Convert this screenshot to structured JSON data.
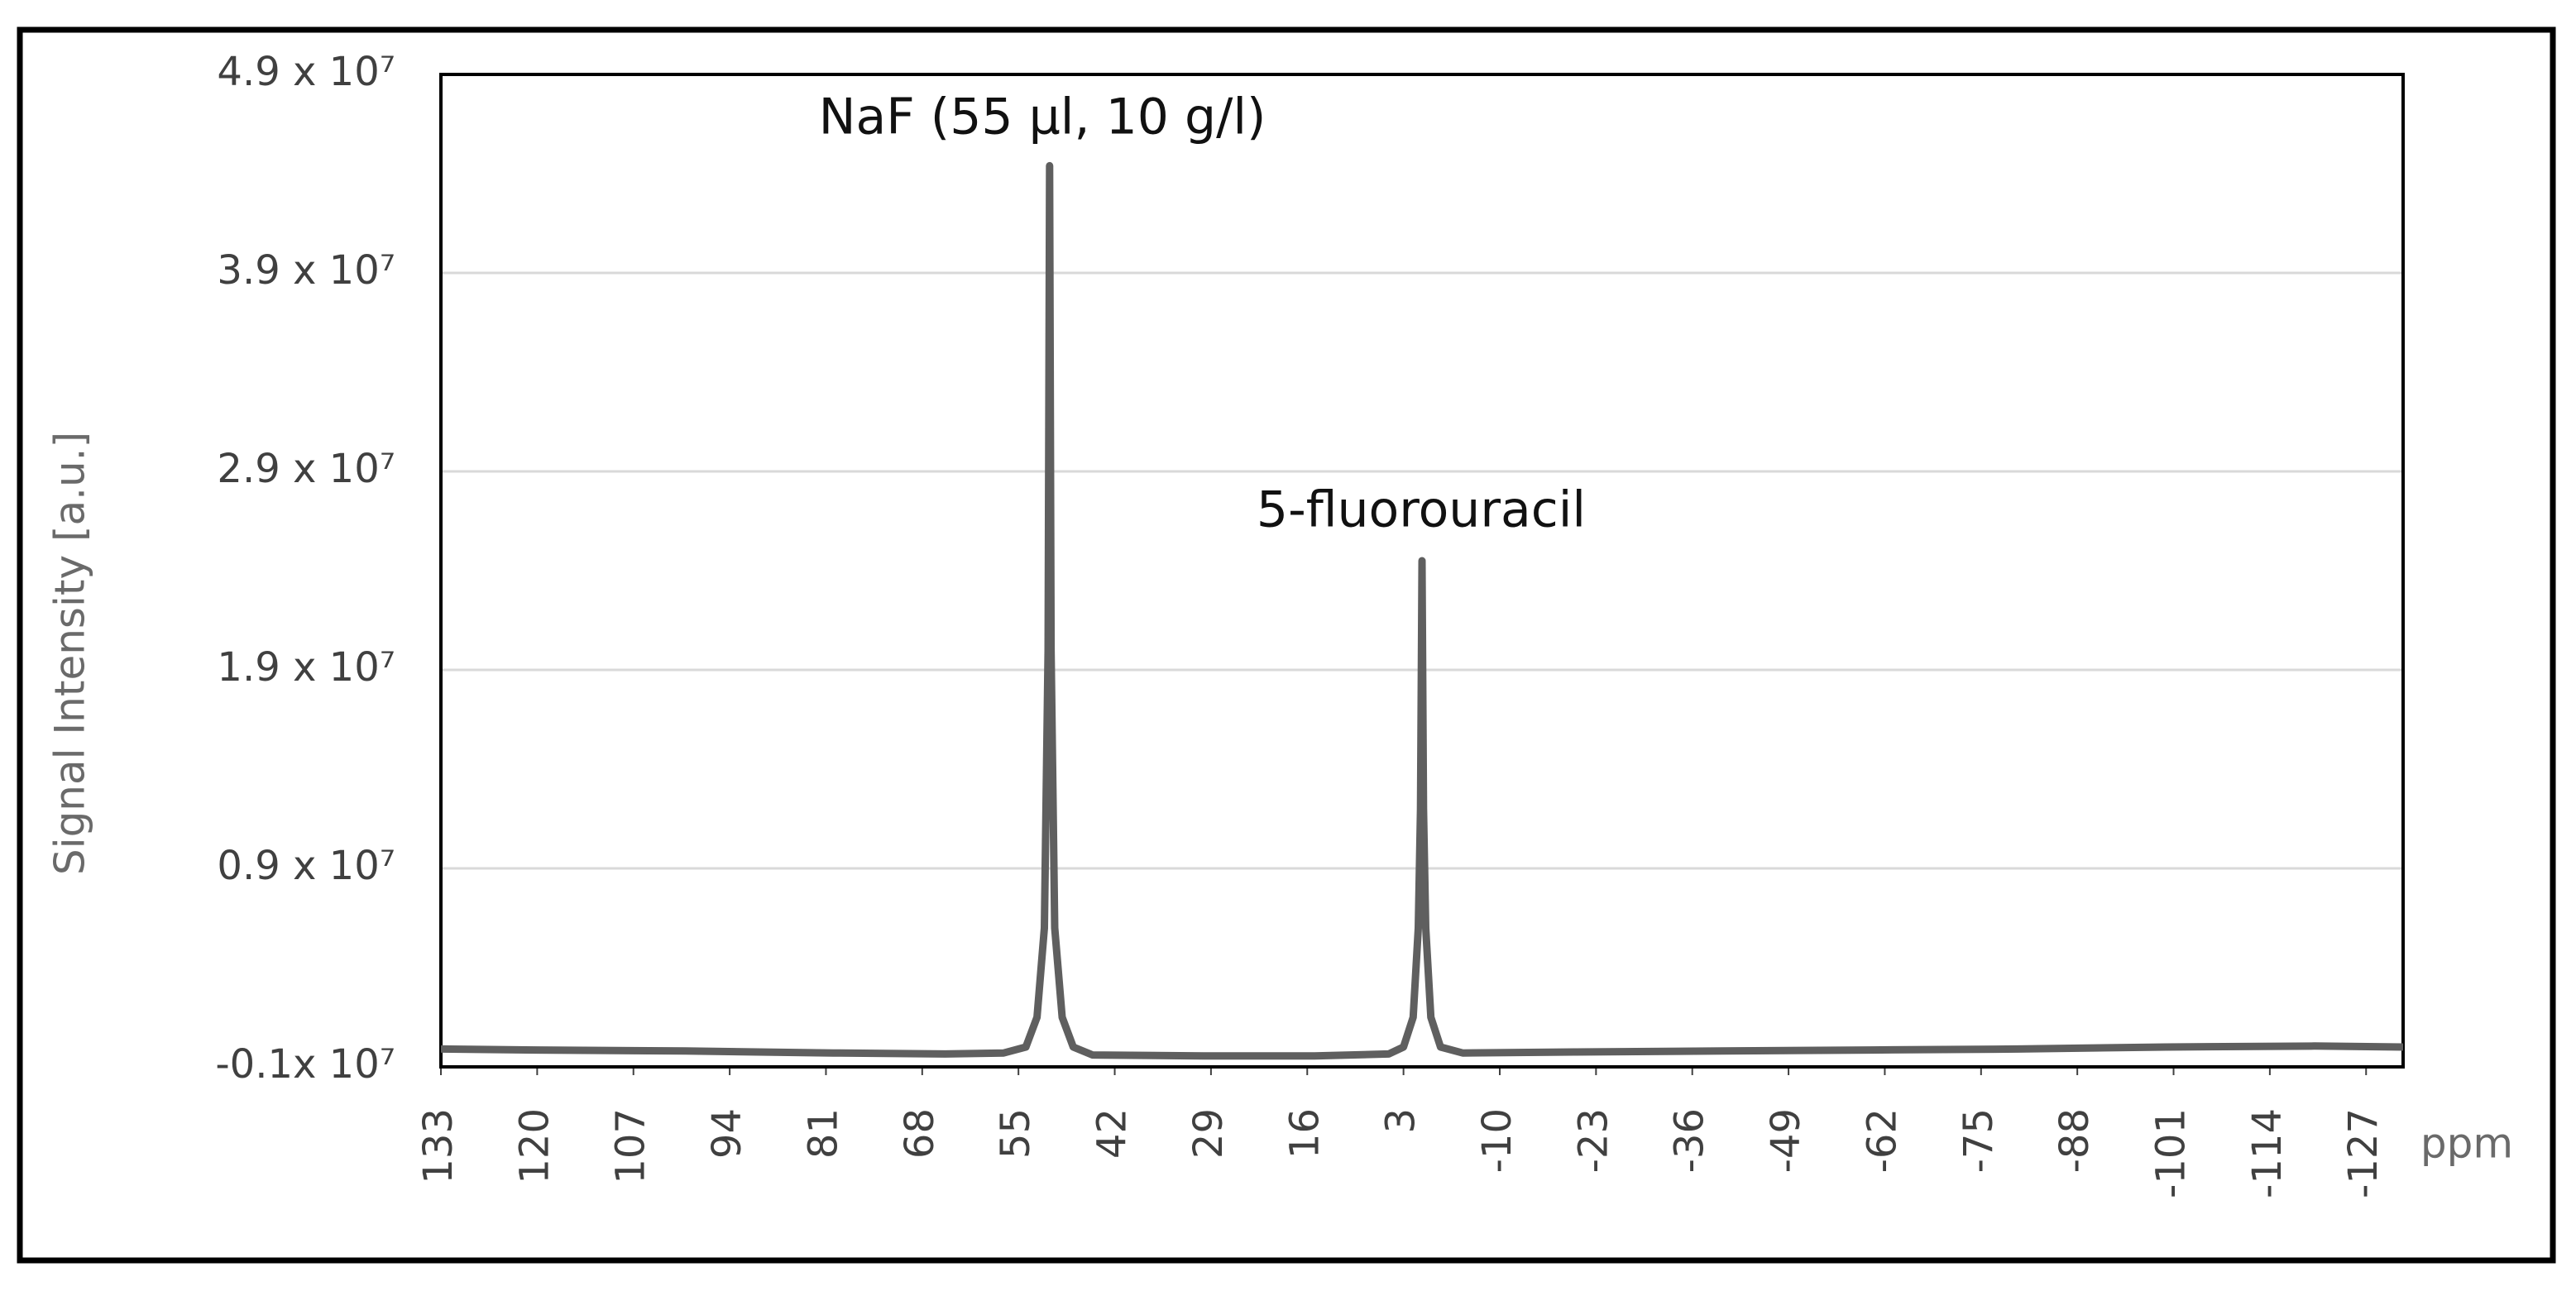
{
  "chart_data": {
    "type": "line",
    "y_label": "Signal Intensity [a.u.]",
    "x_label": "ppm",
    "annotations": [
      "NaF (55 µl, 10 g/l)",
      "5-fluorouracil"
    ],
    "xlim": [
      133,
      -132
    ],
    "xticks": [
      133,
      120,
      107,
      94,
      81,
      68,
      55,
      42,
      29,
      16,
      3,
      -10,
      -23,
      -36,
      -49,
      -62,
      -75,
      -88,
      -101,
      -114,
      -127
    ],
    "ylim": [
      -1000000,
      49000000
    ],
    "yticks": [
      {
        "value": -1000000,
        "label": "-0.1x 10⁷"
      },
      {
        "value": 9000000,
        "label": "0.9 x 10⁷"
      },
      {
        "value": 19000000,
        "label": "1.9 x 10⁷"
      },
      {
        "value": 29000000,
        "label": "2.9 x 10⁷"
      },
      {
        "value": 39000000,
        "label": "3.9 x 10⁷"
      },
      {
        "value": 49000000,
        "label": "4.9 x 10⁷"
      }
    ],
    "grid": true,
    "series": [
      {
        "color": "#5f5f5f",
        "x": [
          133,
          120,
          100,
          80,
          65,
          57,
          54,
          52.5,
          51.5,
          51,
          50.8,
          50.6,
          50.1,
          49.1,
          47.6,
          45,
          30,
          15,
          5,
          3,
          1.7,
          1,
          0.7,
          0.5,
          0.3,
          0,
          -0.7,
          -2,
          -5,
          -20,
          -40,
          -60,
          -80,
          -100,
          -120,
          -132
        ],
        "values": [
          -100000,
          -150000,
          -200000,
          -300000,
          -350000,
          -300000,
          0,
          1500000,
          6000000,
          20000000,
          44400000,
          20000000,
          6000000,
          1500000,
          0,
          -400000,
          -450000,
          -450000,
          -350000,
          0,
          1500000,
          6000000,
          12000000,
          24500000,
          12000000,
          6000000,
          1500000,
          0,
          -300000,
          -250000,
          -200000,
          -150000,
          -100000,
          0,
          50000,
          0
        ]
      }
    ]
  }
}
